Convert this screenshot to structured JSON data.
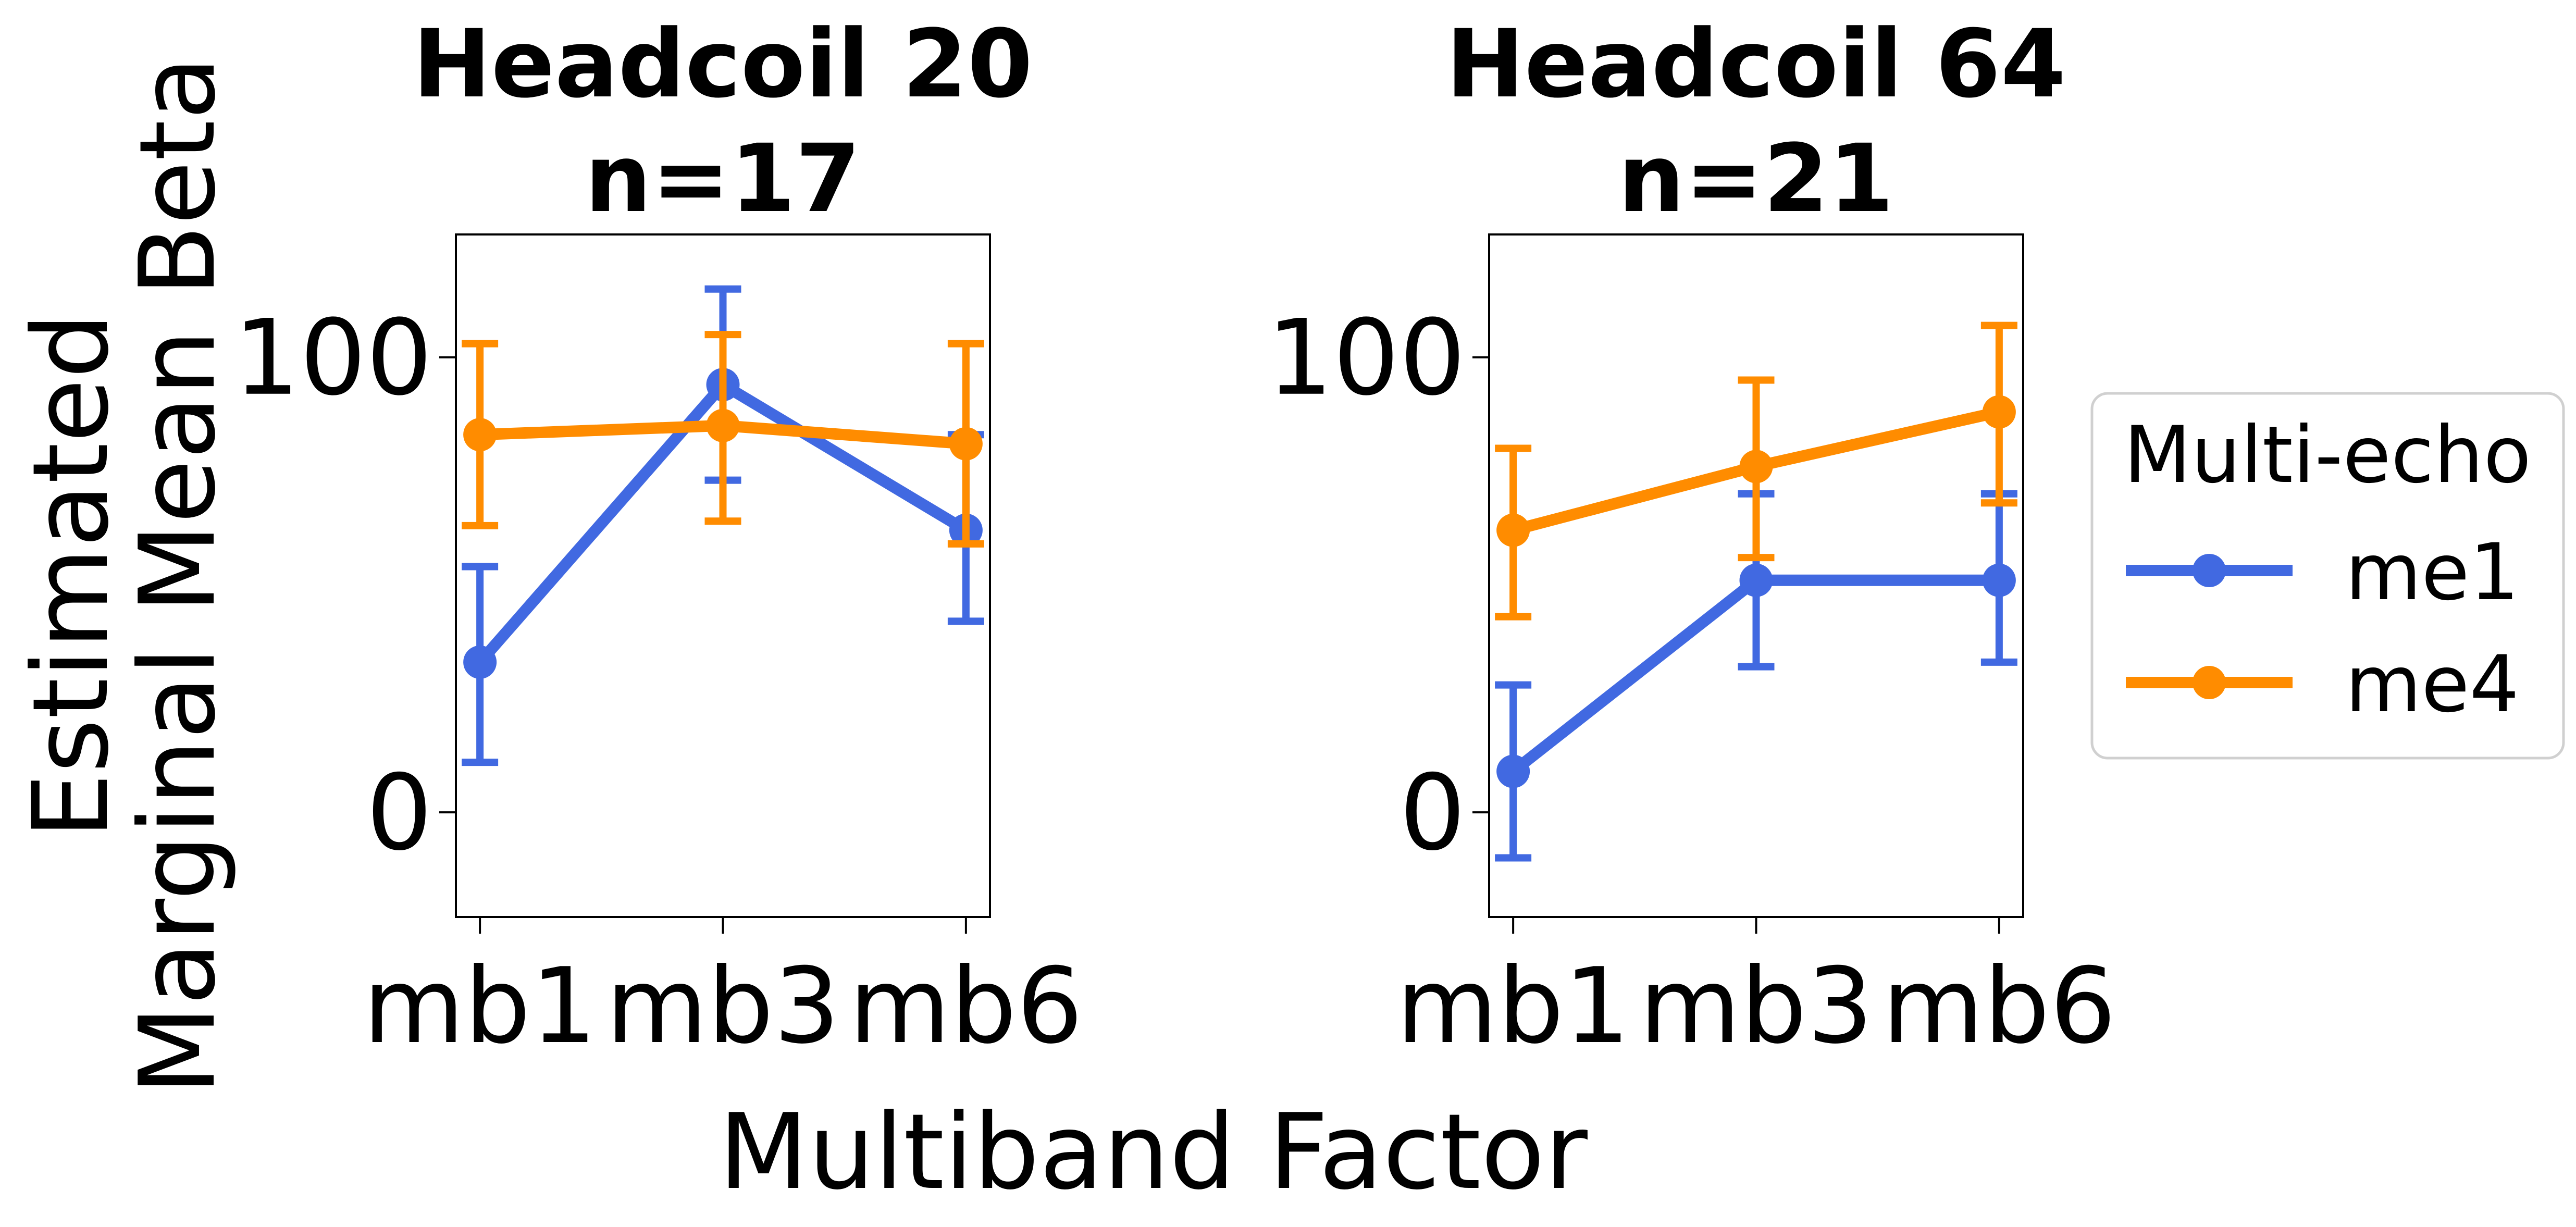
{
  "figure": {
    "ylabel_line1": "Estimated",
    "ylabel_line2": "Marginal Mean Beta",
    "xlabel": "Multiband Factor"
  },
  "legend": {
    "title": "Multi-echo",
    "position": "right"
  },
  "colors": {
    "me1": "#4169E1",
    "me4": "#FF8C00"
  },
  "chart_data": [
    {
      "type": "line",
      "title_line1": "Headcoil 20",
      "title_line2": "n=17",
      "categories": [
        "mb1",
        "mb3",
        "mb6"
      ],
      "ylim": [
        -23,
        127
      ],
      "yticks": [
        0,
        100
      ],
      "series": [
        {
          "name": "me1",
          "values": [
            33,
            94,
            62
          ],
          "err_low": [
            11,
            73,
            42
          ],
          "err_high": [
            54,
            115,
            83
          ]
        },
        {
          "name": "me4",
          "values": [
            83,
            85,
            81
          ],
          "err_low": [
            63,
            64,
            59
          ],
          "err_high": [
            103,
            105,
            103
          ]
        }
      ]
    },
    {
      "type": "line",
      "title_line1": "Headcoil 64",
      "title_line2": "n=21",
      "categories": [
        "mb1",
        "mb3",
        "mb6"
      ],
      "ylim": [
        -23,
        127
      ],
      "yticks": [
        0,
        100
      ],
      "series": [
        {
          "name": "me1",
          "values": [
            9,
            51,
            51
          ],
          "err_low": [
            -10,
            32,
            33
          ],
          "err_high": [
            28,
            70,
            70
          ]
        },
        {
          "name": "me4",
          "values": [
            62,
            76,
            88
          ],
          "err_low": [
            43,
            56,
            68
          ],
          "err_high": [
            80,
            95,
            107
          ]
        }
      ]
    }
  ]
}
